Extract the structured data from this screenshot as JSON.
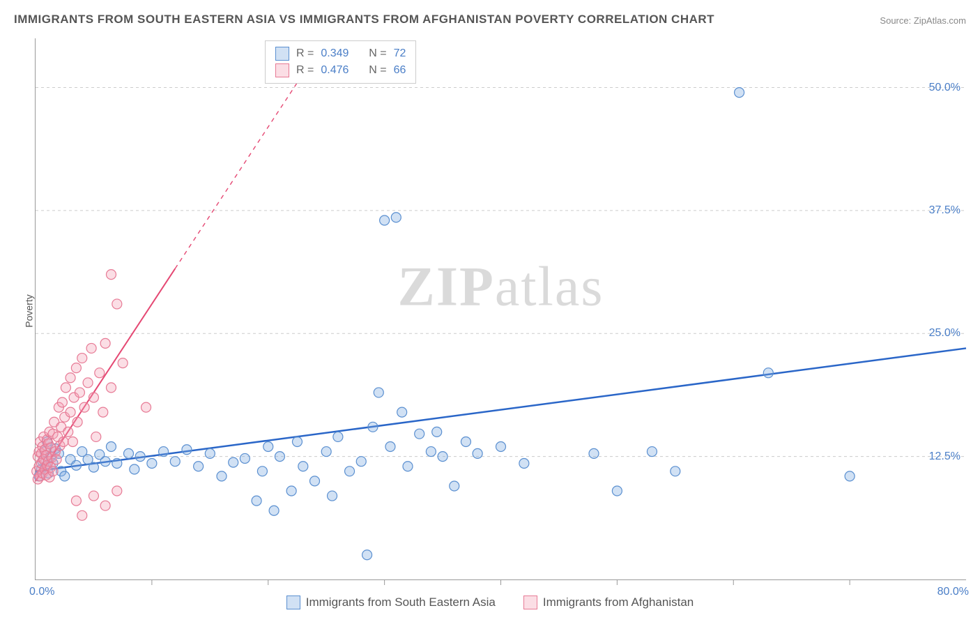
{
  "title": "IMMIGRANTS FROM SOUTH EASTERN ASIA VS IMMIGRANTS FROM AFGHANISTAN POVERTY CORRELATION CHART",
  "source_label": "Source:",
  "source_name": "ZipAtlas.com",
  "ylabel": "Poverty",
  "watermark_a": "ZIP",
  "watermark_b": "atlas",
  "chart": {
    "type": "scatter",
    "xlim": [
      0,
      80
    ],
    "ylim": [
      0,
      55
    ],
    "background_color": "#ffffff",
    "grid_color": "#cccccc",
    "axis_color": "#999999",
    "label_color": "#4a7ec7",
    "yticks": [
      12.5,
      25.0,
      37.5,
      50.0
    ],
    "ytick_labels": [
      "12.5%",
      "25.0%",
      "37.5%",
      "50.0%"
    ],
    "xtick_minor": [
      10,
      20,
      30,
      40,
      50,
      60,
      70
    ],
    "xaxis_left_label": "0.0%",
    "xaxis_right_label": "80.0%",
    "marker_radius": 7,
    "marker_stroke_width": 1.2,
    "series": [
      {
        "name": "Immigrants from South Eastern Asia",
        "fill": "rgba(122,168,224,0.35)",
        "stroke": "#5a8fd0",
        "r_value": "0.349",
        "n_value": "72",
        "trend": {
          "x1": 0,
          "y1": 11.0,
          "x2": 80,
          "y2": 23.5,
          "solid_until_x": 80,
          "color": "#2a66c8",
          "width": 2.5
        },
        "points": [
          [
            0.3,
            10.5
          ],
          [
            0.5,
            11.2
          ],
          [
            0.6,
            12.0
          ],
          [
            0.8,
            13.0
          ],
          [
            0.9,
            11.5
          ],
          [
            1.0,
            14.0
          ],
          [
            1.1,
            10.8
          ],
          [
            1.3,
            12.5
          ],
          [
            1.5,
            11.8
          ],
          [
            1.7,
            13.3
          ],
          [
            2.0,
            12.8
          ],
          [
            2.2,
            11.0
          ],
          [
            2.5,
            10.5
          ],
          [
            3.0,
            12.2
          ],
          [
            3.5,
            11.6
          ],
          [
            4.0,
            13.0
          ],
          [
            4.5,
            12.2
          ],
          [
            5.0,
            11.4
          ],
          [
            5.5,
            12.7
          ],
          [
            6.0,
            12.0
          ],
          [
            6.5,
            13.5
          ],
          [
            7.0,
            11.8
          ],
          [
            8.0,
            12.8
          ],
          [
            8.5,
            11.2
          ],
          [
            9.0,
            12.5
          ],
          [
            10.0,
            11.8
          ],
          [
            11.0,
            13.0
          ],
          [
            12.0,
            12.0
          ],
          [
            13.0,
            13.2
          ],
          [
            14.0,
            11.5
          ],
          [
            15.0,
            12.8
          ],
          [
            16.0,
            10.5
          ],
          [
            17.0,
            11.9
          ],
          [
            18.0,
            12.3
          ],
          [
            19.0,
            8.0
          ],
          [
            19.5,
            11.0
          ],
          [
            20.0,
            13.5
          ],
          [
            20.5,
            7.0
          ],
          [
            21.0,
            12.5
          ],
          [
            22.0,
            9.0
          ],
          [
            22.5,
            14.0
          ],
          [
            23.0,
            11.5
          ],
          [
            24.0,
            10.0
          ],
          [
            25.0,
            13.0
          ],
          [
            25.5,
            8.5
          ],
          [
            26.0,
            14.5
          ],
          [
            27.0,
            11.0
          ],
          [
            28.0,
            12.0
          ],
          [
            28.5,
            2.5
          ],
          [
            29.0,
            15.5
          ],
          [
            29.5,
            19.0
          ],
          [
            30.0,
            36.5
          ],
          [
            31.0,
            36.8
          ],
          [
            30.5,
            13.5
          ],
          [
            31.5,
            17.0
          ],
          [
            32.0,
            11.5
          ],
          [
            33.0,
            14.8
          ],
          [
            34.0,
            13.0
          ],
          [
            34.5,
            15.0
          ],
          [
            35.0,
            12.5
          ],
          [
            36.0,
            9.5
          ],
          [
            37.0,
            14.0
          ],
          [
            38.0,
            12.8
          ],
          [
            40.0,
            13.5
          ],
          [
            42.0,
            11.8
          ],
          [
            48.0,
            12.8
          ],
          [
            50.0,
            9.0
          ],
          [
            53.0,
            13.0
          ],
          [
            55.0,
            11.0
          ],
          [
            60.5,
            49.5
          ],
          [
            63.0,
            21.0
          ],
          [
            70.0,
            10.5
          ]
        ]
      },
      {
        "name": "Immigrants from Afghanistan",
        "fill": "rgba(244,160,180,0.35)",
        "stroke": "#e77a95",
        "r_value": "0.476",
        "n_value": "66",
        "trend": {
          "x1": 0,
          "y1": 10.0,
          "x2": 25,
          "y2": 55.0,
          "solid_until_x": 12,
          "color": "#e54873",
          "width": 2
        },
        "points": [
          [
            0.1,
            11.0
          ],
          [
            0.2,
            12.5
          ],
          [
            0.2,
            10.2
          ],
          [
            0.3,
            13.0
          ],
          [
            0.3,
            11.5
          ],
          [
            0.4,
            14.0
          ],
          [
            0.4,
            10.5
          ],
          [
            0.5,
            12.8
          ],
          [
            0.5,
            11.8
          ],
          [
            0.6,
            13.5
          ],
          [
            0.6,
            10.8
          ],
          [
            0.7,
            12.2
          ],
          [
            0.7,
            14.5
          ],
          [
            0.8,
            11.2
          ],
          [
            0.8,
            13.2
          ],
          [
            0.9,
            12.6
          ],
          [
            0.9,
            10.6
          ],
          [
            1.0,
            14.2
          ],
          [
            1.0,
            11.6
          ],
          [
            1.1,
            13.8
          ],
          [
            1.1,
            12.0
          ],
          [
            1.2,
            10.4
          ],
          [
            1.2,
            15.0
          ],
          [
            1.3,
            11.4
          ],
          [
            1.3,
            13.4
          ],
          [
            1.4,
            12.4
          ],
          [
            1.5,
            14.8
          ],
          [
            1.5,
            11.0
          ],
          [
            1.6,
            16.0
          ],
          [
            1.7,
            13.0
          ],
          [
            1.8,
            12.2
          ],
          [
            1.9,
            14.5
          ],
          [
            2.0,
            17.5
          ],
          [
            2.1,
            13.6
          ],
          [
            2.2,
            15.5
          ],
          [
            2.3,
            18.0
          ],
          [
            2.4,
            14.0
          ],
          [
            2.5,
            16.5
          ],
          [
            2.6,
            19.5
          ],
          [
            2.8,
            15.0
          ],
          [
            3.0,
            20.5
          ],
          [
            3.0,
            17.0
          ],
          [
            3.2,
            14.0
          ],
          [
            3.3,
            18.5
          ],
          [
            3.5,
            21.5
          ],
          [
            3.6,
            16.0
          ],
          [
            3.8,
            19.0
          ],
          [
            4.0,
            22.5
          ],
          [
            4.2,
            17.5
          ],
          [
            4.5,
            20.0
          ],
          [
            4.8,
            23.5
          ],
          [
            5.0,
            18.5
          ],
          [
            5.2,
            14.5
          ],
          [
            5.5,
            21.0
          ],
          [
            5.8,
            17.0
          ],
          [
            6.0,
            24.0
          ],
          [
            6.5,
            19.5
          ],
          [
            7.0,
            28.0
          ],
          [
            7.5,
            22.0
          ],
          [
            5.0,
            8.5
          ],
          [
            6.0,
            7.5
          ],
          [
            7.0,
            9.0
          ],
          [
            3.5,
            8.0
          ],
          [
            4.0,
            6.5
          ],
          [
            6.5,
            31.0
          ],
          [
            9.5,
            17.5
          ]
        ]
      }
    ],
    "legend_labels": {
      "R": "R =",
      "N": "N ="
    }
  },
  "bottom_legend": {
    "series1": "Immigrants from South Eastern Asia",
    "series2": "Immigrants from Afghanistan"
  }
}
